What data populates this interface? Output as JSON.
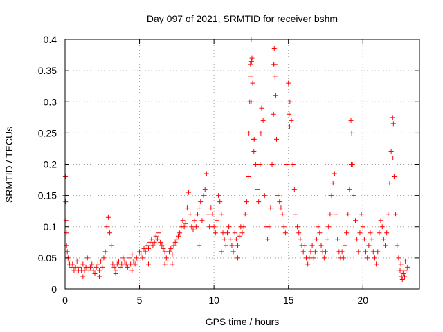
{
  "chart_data": {
    "type": "scatter",
    "title": "Day 097 of 2021, SRMTID for receiver bshm",
    "xlabel": "GPS time / hours",
    "ylabel": "SRMTID / TECUs",
    "xlim": [
      0,
      23.8
    ],
    "ylim": [
      0,
      0.4
    ],
    "xticks": [
      0,
      5,
      10,
      15,
      20
    ],
    "yticks": [
      0,
      0.05,
      0.1,
      0.15,
      0.2,
      0.25,
      0.3,
      0.35,
      0.4
    ],
    "xtick_labels": [
      "0",
      "5",
      "10",
      "15",
      "20"
    ],
    "ytick_labels": [
      "0",
      "0.05",
      "0.1",
      "0.15",
      "0.2",
      "0.25",
      "0.3",
      "0.35",
      "0.4"
    ],
    "grid": true,
    "marker": "+",
    "color": "#ff0000",
    "series": [
      {
        "name": "SRMTID",
        "points": [
          [
            0.0,
            0.15
          ],
          [
            0.02,
            0.18
          ],
          [
            0.04,
            0.14
          ],
          [
            0.06,
            0.11
          ],
          [
            0.08,
            0.09
          ],
          [
            0.1,
            0.07
          ],
          [
            0.15,
            0.06
          ],
          [
            0.2,
            0.05
          ],
          [
            0.25,
            0.045
          ],
          [
            0.3,
            0.04
          ],
          [
            0.4,
            0.035
          ],
          [
            0.5,
            0.04
          ],
          [
            0.6,
            0.03
          ],
          [
            0.7,
            0.035
          ],
          [
            0.8,
            0.045
          ],
          [
            0.9,
            0.03
          ],
          [
            1.0,
            0.035
          ],
          [
            1.1,
            0.03
          ],
          [
            1.2,
            0.04
          ],
          [
            1.3,
            0.03
          ],
          [
            1.4,
            0.035
          ],
          [
            1.5,
            0.05
          ],
          [
            1.6,
            0.03
          ],
          [
            1.7,
            0.035
          ],
          [
            1.8,
            0.04
          ],
          [
            1.9,
            0.03
          ],
          [
            2.0,
            0.025
          ],
          [
            2.1,
            0.035
          ],
          [
            2.2,
            0.04
          ],
          [
            2.3,
            0.03
          ],
          [
            2.4,
            0.045
          ],
          [
            2.5,
            0.035
          ],
          [
            2.6,
            0.05
          ],
          [
            2.7,
            0.06
          ],
          [
            2.8,
            0.1
          ],
          [
            2.9,
            0.115
          ],
          [
            3.0,
            0.09
          ],
          [
            3.1,
            0.07
          ],
          [
            3.2,
            0.04
          ],
          [
            3.3,
            0.035
          ],
          [
            3.4,
            0.03
          ],
          [
            3.5,
            0.04
          ],
          [
            3.6,
            0.045
          ],
          [
            3.7,
            0.035
          ],
          [
            3.8,
            0.04
          ],
          [
            3.9,
            0.05
          ],
          [
            4.0,
            0.045
          ],
          [
            4.1,
            0.04
          ],
          [
            4.2,
            0.035
          ],
          [
            4.3,
            0.05
          ],
          [
            4.4,
            0.04
          ],
          [
            4.5,
            0.055
          ],
          [
            4.6,
            0.045
          ],
          [
            4.7,
            0.04
          ],
          [
            4.8,
            0.05
          ],
          [
            4.9,
            0.045
          ],
          [
            5.0,
            0.06
          ],
          [
            5.1,
            0.055
          ],
          [
            5.2,
            0.05
          ],
          [
            5.3,
            0.065
          ],
          [
            5.4,
            0.06
          ],
          [
            5.5,
            0.07
          ],
          [
            5.6,
            0.065
          ],
          [
            5.7,
            0.075
          ],
          [
            5.8,
            0.08
          ],
          [
            5.9,
            0.07
          ],
          [
            6.0,
            0.075
          ],
          [
            6.1,
            0.085
          ],
          [
            6.2,
            0.08
          ],
          [
            6.3,
            0.09
          ],
          [
            6.4,
            0.075
          ],
          [
            6.5,
            0.07
          ],
          [
            6.6,
            0.065
          ],
          [
            6.7,
            0.06
          ],
          [
            6.8,
            0.05
          ],
          [
            6.9,
            0.045
          ],
          [
            7.0,
            0.06
          ],
          [
            7.1,
            0.065
          ],
          [
            7.2,
            0.055
          ],
          [
            7.3,
            0.07
          ],
          [
            7.4,
            0.075
          ],
          [
            7.5,
            0.08
          ],
          [
            7.6,
            0.085
          ],
          [
            7.7,
            0.09
          ],
          [
            7.8,
            0.1
          ],
          [
            7.9,
            0.11
          ],
          [
            8.0,
            0.1
          ],
          [
            8.1,
            0.105
          ],
          [
            8.2,
            0.13
          ],
          [
            8.3,
            0.155
          ],
          [
            8.4,
            0.12
          ],
          [
            8.5,
            0.1
          ],
          [
            8.6,
            0.095
          ],
          [
            8.7,
            0.11
          ],
          [
            8.8,
            0.1
          ],
          [
            8.9,
            0.12
          ],
          [
            9.0,
            0.13
          ],
          [
            9.1,
            0.14
          ],
          [
            9.2,
            0.11
          ],
          [
            9.3,
            0.15
          ],
          [
            9.4,
            0.16
          ],
          [
            9.5,
            0.185
          ],
          [
            9.6,
            0.12
          ],
          [
            9.7,
            0.1
          ],
          [
            9.8,
            0.13
          ],
          [
            9.9,
            0.12
          ],
          [
            10.0,
            0.1
          ],
          [
            10.1,
            0.09
          ],
          [
            10.2,
            0.11
          ],
          [
            10.3,
            0.15
          ],
          [
            10.4,
            0.14
          ],
          [
            10.5,
            0.12
          ],
          [
            10.6,
            0.09
          ],
          [
            10.7,
            0.08
          ],
          [
            10.8,
            0.07
          ],
          [
            10.9,
            0.09
          ],
          [
            11.0,
            0.1
          ],
          [
            11.1,
            0.08
          ],
          [
            11.2,
            0.07
          ],
          [
            11.3,
            0.06
          ],
          [
            11.4,
            0.09
          ],
          [
            11.5,
            0.08
          ],
          [
            11.6,
            0.07
          ],
          [
            11.7,
            0.085
          ],
          [
            11.8,
            0.1
          ],
          [
            11.9,
            0.09
          ],
          [
            12.0,
            0.1
          ],
          [
            12.1,
            0.12
          ],
          [
            12.2,
            0.14
          ],
          [
            12.3,
            0.18
          ],
          [
            12.35,
            0.25
          ],
          [
            12.4,
            0.3
          ],
          [
            12.45,
            0.36
          ],
          [
            12.5,
            0.4
          ],
          [
            12.55,
            0.37
          ],
          [
            12.6,
            0.33
          ],
          [
            12.7,
            0.24
          ],
          [
            12.8,
            0.2
          ],
          [
            12.9,
            0.16
          ],
          [
            13.0,
            0.14
          ],
          [
            13.1,
            0.2
          ],
          [
            13.2,
            0.29
          ],
          [
            13.3,
            0.27
          ],
          [
            13.4,
            0.15
          ],
          [
            13.5,
            0.1
          ],
          [
            13.6,
            0.08
          ],
          [
            13.7,
            0.1
          ],
          [
            13.8,
            0.13
          ],
          [
            13.9,
            0.2
          ],
          [
            14.0,
            0.28
          ],
          [
            14.05,
            0.385
          ],
          [
            14.1,
            0.36
          ],
          [
            14.15,
            0.31
          ],
          [
            14.2,
            0.24
          ],
          [
            14.3,
            0.15
          ],
          [
            14.4,
            0.14
          ],
          [
            14.5,
            0.13
          ],
          [
            14.6,
            0.12
          ],
          [
            14.7,
            0.1
          ],
          [
            14.8,
            0.09
          ],
          [
            14.9,
            0.2
          ],
          [
            15.0,
            0.33
          ],
          [
            15.1,
            0.3
          ],
          [
            15.2,
            0.27
          ],
          [
            15.3,
            0.2
          ],
          [
            15.4,
            0.16
          ],
          [
            15.5,
            0.12
          ],
          [
            15.6,
            0.1
          ],
          [
            15.7,
            0.09
          ],
          [
            15.8,
            0.08
          ],
          [
            15.9,
            0.07
          ],
          [
            16.0,
            0.06
          ],
          [
            16.1,
            0.07
          ],
          [
            16.2,
            0.05
          ],
          [
            16.3,
            0.04
          ],
          [
            16.4,
            0.05
          ],
          [
            16.5,
            0.06
          ],
          [
            16.6,
            0.07
          ],
          [
            16.7,
            0.05
          ],
          [
            16.8,
            0.06
          ],
          [
            16.9,
            0.08
          ],
          [
            17.0,
            0.1
          ],
          [
            17.1,
            0.09
          ],
          [
            17.2,
            0.07
          ],
          [
            17.3,
            0.06
          ],
          [
            17.4,
            0.05
          ],
          [
            17.5,
            0.06
          ],
          [
            17.6,
            0.08
          ],
          [
            17.7,
            0.1
          ],
          [
            17.8,
            0.12
          ],
          [
            17.9,
            0.15
          ],
          [
            18.0,
            0.17
          ],
          [
            18.1,
            0.185
          ],
          [
            18.2,
            0.12
          ],
          [
            18.3,
            0.08
          ],
          [
            18.4,
            0.06
          ],
          [
            18.5,
            0.05
          ],
          [
            18.6,
            0.06
          ],
          [
            18.7,
            0.05
          ],
          [
            18.8,
            0.07
          ],
          [
            18.9,
            0.09
          ],
          [
            19.0,
            0.12
          ],
          [
            19.1,
            0.16
          ],
          [
            19.2,
            0.27
          ],
          [
            19.25,
            0.25
          ],
          [
            19.3,
            0.2
          ],
          [
            19.4,
            0.15
          ],
          [
            19.5,
            0.11
          ],
          [
            19.6,
            0.08
          ],
          [
            19.7,
            0.06
          ],
          [
            19.8,
            0.09
          ],
          [
            19.9,
            0.12
          ],
          [
            20.0,
            0.1
          ],
          [
            20.1,
            0.08
          ],
          [
            20.2,
            0.06
          ],
          [
            20.3,
            0.05
          ],
          [
            20.4,
            0.07
          ],
          [
            20.5,
            0.09
          ],
          [
            20.6,
            0.08
          ],
          [
            20.7,
            0.06
          ],
          [
            20.8,
            0.05
          ],
          [
            20.9,
            0.04
          ],
          [
            21.0,
            0.06
          ],
          [
            21.1,
            0.09
          ],
          [
            21.2,
            0.11
          ],
          [
            21.3,
            0.1
          ],
          [
            21.4,
            0.08
          ],
          [
            21.5,
            0.07
          ],
          [
            21.6,
            0.09
          ],
          [
            21.7,
            0.12
          ],
          [
            21.8,
            0.17
          ],
          [
            21.9,
            0.22
          ],
          [
            22.0,
            0.275
          ],
          [
            22.05,
            0.265
          ],
          [
            22.1,
            0.18
          ],
          [
            22.2,
            0.12
          ],
          [
            22.3,
            0.07
          ],
          [
            22.4,
            0.05
          ],
          [
            22.5,
            0.03
          ],
          [
            22.6,
            0.02
          ],
          [
            22.7,
            0.025
          ],
          [
            22.8,
            0.02
          ],
          [
            22.9,
            0.03
          ],
          [
            23.0,
            0.035
          ],
          [
            22.55,
            0.04
          ],
          [
            22.65,
            0.015
          ],
          [
            22.75,
            0.03
          ],
          [
            22.85,
            0.045
          ],
          [
            12.5,
            0.3
          ],
          [
            12.48,
            0.34
          ],
          [
            12.52,
            0.365
          ],
          [
            14.1,
            0.34
          ],
          [
            14.02,
            0.36
          ],
          [
            15.05,
            0.28
          ],
          [
            15.08,
            0.26
          ],
          [
            19.22,
            0.2
          ],
          [
            22.02,
            0.21
          ],
          [
            12.62,
            0.24
          ],
          [
            12.68,
            0.22
          ],
          [
            13.15,
            0.25
          ],
          [
            1.2,
            0.02
          ],
          [
            2.3,
            0.02
          ],
          [
            3.4,
            0.025
          ],
          [
            4.5,
            0.03
          ],
          [
            5.6,
            0.04
          ],
          [
            6.7,
            0.04
          ],
          [
            7.2,
            0.04
          ],
          [
            9.0,
            0.07
          ],
          [
            10.5,
            0.06
          ],
          [
            11.6,
            0.05
          ]
        ]
      }
    ]
  }
}
